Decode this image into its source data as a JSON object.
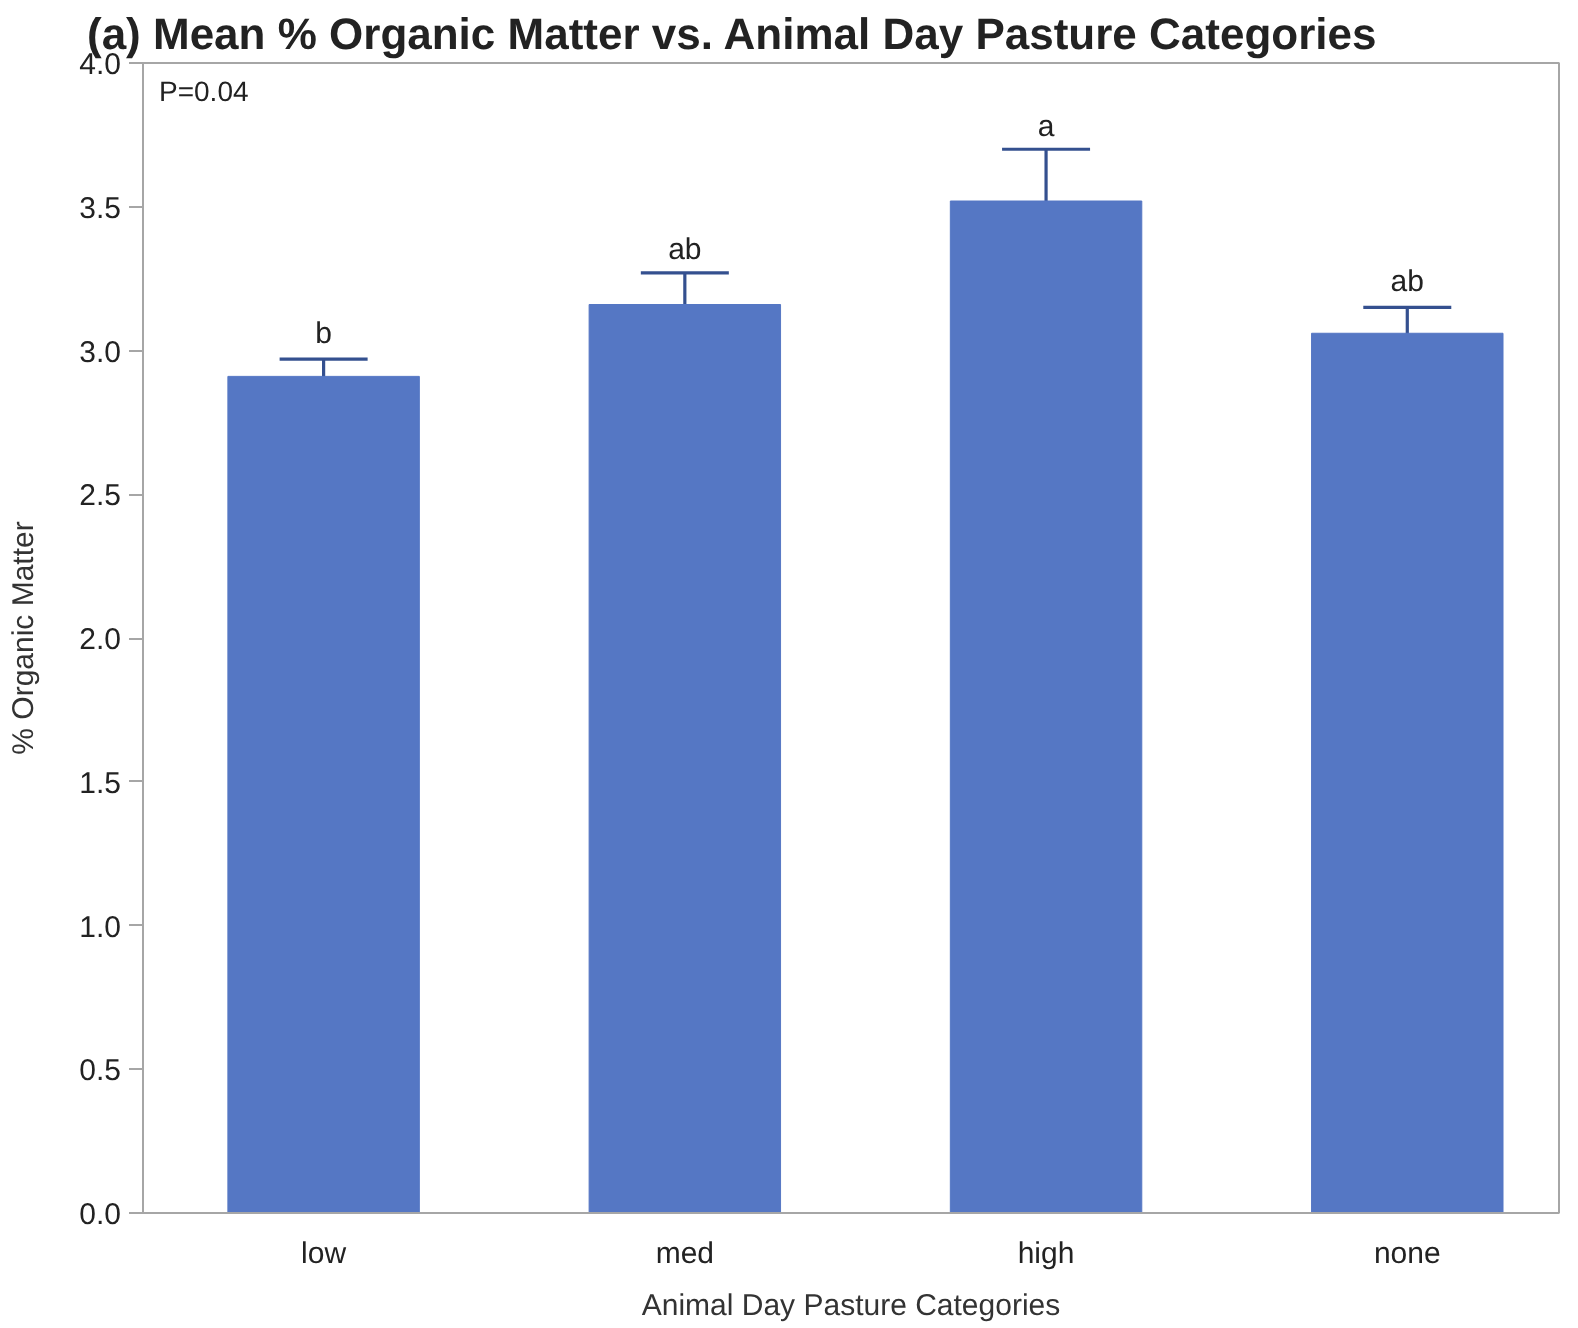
{
  "chart_data": {
    "type": "bar",
    "title": "(a) Mean % Organic Matter vs. Animal Day Pasture Categories",
    "xlabel": "Animal Day Pasture Categories",
    "ylabel": "% Organic Matter",
    "categories": [
      "low",
      "med",
      "high",
      "none"
    ],
    "values": [
      2.91,
      3.16,
      3.52,
      3.06
    ],
    "color": "#5577c4",
    "errors": [
      0.06,
      0.11,
      0.18,
      0.09
    ],
    "ylim": [
      0,
      4.0
    ],
    "yticks": [
      {
        "value": 0,
        "label": "0.0"
      },
      {
        "value": 0.5,
        "label": "0.5"
      },
      {
        "value": 1,
        "label": "1.0"
      },
      {
        "value": 1.5,
        "label": "1.5"
      },
      {
        "value": 2,
        "label": "2.0"
      },
      {
        "value": 2.5,
        "label": "2.5"
      },
      {
        "value": 3,
        "label": "3.0"
      },
      {
        "value": 3.5,
        "label": "3.5"
      },
      {
        "value": 4,
        "label": "4.0"
      }
    ],
    "annotations": [
      "P=0.04",
      {
        "text": "b",
        "x": "low",
        "y": 3.0
      },
      {
        "text": "ab",
        "x": "med",
        "y": 3.29
      },
      {
        "text": "a",
        "x": "high",
        "y": 3.72
      },
      {
        "text": "ab",
        "x": "none",
        "y": 3.18
      }
    ]
  }
}
